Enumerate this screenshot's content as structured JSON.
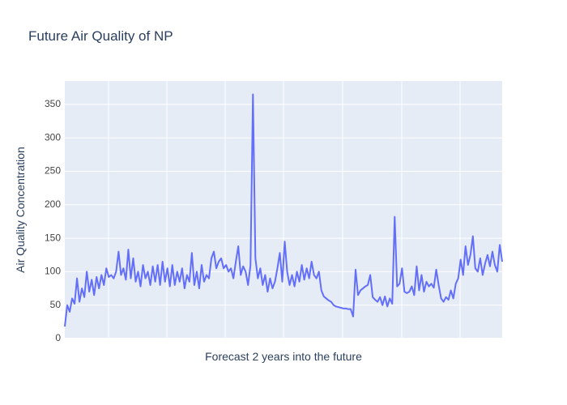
{
  "chart_data": {
    "type": "line",
    "title": "Future Air Quality of NP",
    "x_label": "Forecast 2 years into the future",
    "y_label": "Air Quality Concentration",
    "color": "#636efa",
    "ylim": [
      0,
      385
    ],
    "yticks": [
      0,
      50,
      100,
      150,
      200,
      250,
      300,
      350
    ],
    "grid": true,
    "values": [
      18,
      50,
      40,
      60,
      52,
      90,
      55,
      75,
      62,
      100,
      70,
      88,
      65,
      92,
      75,
      95,
      80,
      105,
      92,
      95,
      90,
      100,
      130,
      95,
      105,
      88,
      133,
      90,
      120,
      85,
      100,
      78,
      110,
      90,
      100,
      80,
      108,
      85,
      110,
      80,
      115,
      85,
      105,
      78,
      110,
      80,
      100,
      85,
      105,
      75,
      95,
      85,
      128,
      80,
      100,
      75,
      110,
      85,
      95,
      90,
      120,
      130,
      105,
      115,
      120,
      105,
      110,
      100,
      105,
      90,
      115,
      138,
      95,
      108,
      100,
      80,
      110,
      365,
      120,
      90,
      105,
      80,
      95,
      70,
      90,
      75,
      85,
      105,
      128,
      85,
      145,
      100,
      80,
      95,
      78,
      100,
      85,
      110,
      88,
      105,
      90,
      115,
      95,
      90,
      100,
      72,
      63,
      60,
      57,
      55,
      50,
      48,
      47,
      46,
      45,
      45,
      44,
      44,
      33,
      103,
      65,
      72,
      75,
      78,
      80,
      95,
      62,
      58,
      55,
      62,
      50,
      63,
      48,
      60,
      52,
      182,
      78,
      82,
      105,
      70,
      68,
      70,
      78,
      65,
      108,
      72,
      95,
      70,
      85,
      78,
      82,
      76,
      103,
      80,
      60,
      55,
      62,
      58,
      72,
      60,
      82,
      90,
      118,
      95,
      138,
      110,
      125,
      153,
      105,
      100,
      120,
      95,
      112,
      125,
      108,
      130,
      110,
      100,
      140,
      115
    ]
  }
}
